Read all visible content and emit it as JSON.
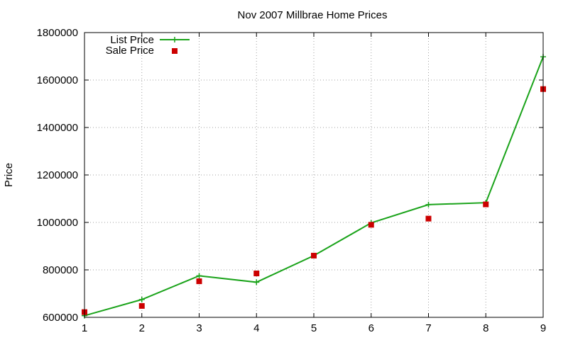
{
  "chart_data": {
    "type": "line",
    "title": "Nov 2007 Millbrae Home Prices",
    "xlabel": "",
    "ylabel": "Price",
    "xlim": [
      1,
      9
    ],
    "ylim": [
      600000,
      1800000
    ],
    "x_ticks": [
      "1",
      "2",
      "3",
      "4",
      "5",
      "6",
      "7",
      "8",
      "9"
    ],
    "y_ticks": [
      "600000",
      "800000",
      "1000000",
      "1200000",
      "1400000",
      "1600000",
      "1800000"
    ],
    "grid": true,
    "legend_position": "top-left",
    "series": [
      {
        "name": "List Price",
        "style": "line-points",
        "color": "#1aa31a",
        "x": [
          1,
          2,
          3,
          4,
          5,
          6,
          7,
          8,
          9
        ],
        "values": [
          607000,
          675000,
          775000,
          748000,
          860000,
          998000,
          1075000,
          1083000,
          1698000
        ]
      },
      {
        "name": "Sale Price",
        "style": "points",
        "color": "#cc0000",
        "x": [
          1,
          2,
          3,
          4,
          5,
          6,
          7,
          8,
          9
        ],
        "values": [
          622000,
          648000,
          752000,
          785000,
          860000,
          990000,
          1016000,
          1076000,
          1562000
        ]
      }
    ]
  }
}
